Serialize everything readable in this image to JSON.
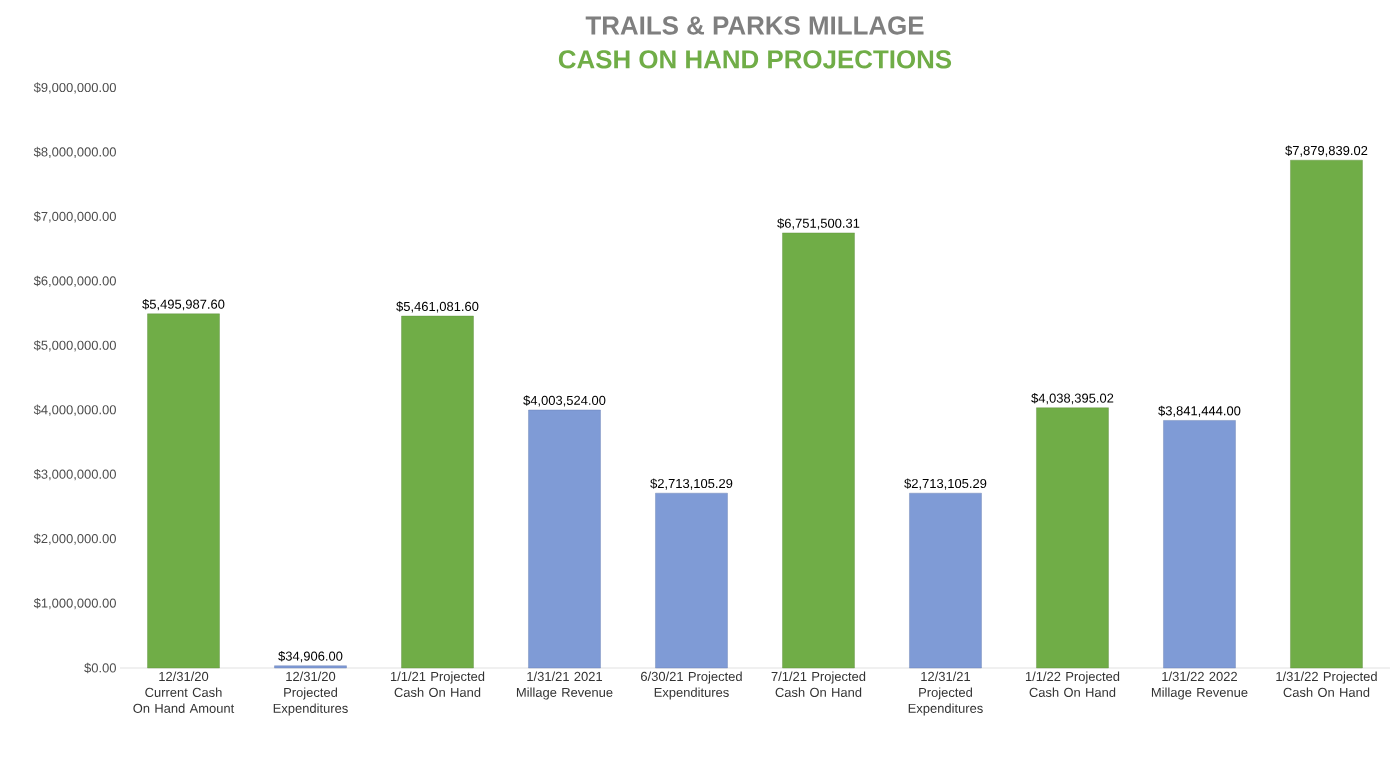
{
  "chart_data": {
    "type": "bar",
    "title": "TRAILS & PARKS MILLAGE",
    "subtitle": "CASH ON HAND PROJECTIONS",
    "categories": [
      "12/31/20 Current Cash On Hand Amount",
      "12/31/20 Projected Expenditures",
      "1/1/21 Projected Cash On Hand",
      "1/31/21 2021 Millage Revenue",
      "6/30/21 Projected Expenditures",
      "7/1/21 Projected Cash On Hand",
      "12/31/21 Projected Expenditures",
      "1/1/22 Projected Cash On Hand",
      "1/31/22 2022 Millage Revenue",
      "1/31/22 Projected Cash On Hand"
    ],
    "values": [
      5495987.6,
      34906.0,
      5461081.6,
      4003524.0,
      2713105.29,
      6751500.31,
      2713105.29,
      4038395.02,
      3841444.0,
      7879839.02
    ],
    "value_labels": [
      "$5,495,987.60",
      "$34,906.00",
      "$5,461,081.60",
      "$4,003,524.00",
      "$2,713,105.29",
      "$6,751,500.31",
      "$2,713,105.29",
      "$4,038,395.02",
      "$3,841,444.00",
      "$7,879,839.02"
    ],
    "colors": [
      "#70ad47",
      "#7f9bd6",
      "#70ad47",
      "#7f9bd6",
      "#7f9bd6",
      "#70ad47",
      "#7f9bd6",
      "#70ad47",
      "#7f9bd6",
      "#70ad47"
    ],
    "ylim": [
      0,
      9000000
    ],
    "yticks": [
      {
        "value": 0,
        "label": "$0.00"
      },
      {
        "value": 1000000,
        "label": "$1,000,000.00"
      },
      {
        "value": 2000000,
        "label": "$2,000,000.00"
      },
      {
        "value": 3000000,
        "label": "$3,000,000.00"
      },
      {
        "value": 4000000,
        "label": "$4,000,000.00"
      },
      {
        "value": 5000000,
        "label": "$5,000,000.00"
      },
      {
        "value": 6000000,
        "label": "$6,000,000.00"
      },
      {
        "value": 7000000,
        "label": "$7,000,000.00"
      },
      {
        "value": 8000000,
        "label": "$8,000,000.00"
      },
      {
        "value": 9000000,
        "label": "$9,000,000.00"
      }
    ]
  }
}
